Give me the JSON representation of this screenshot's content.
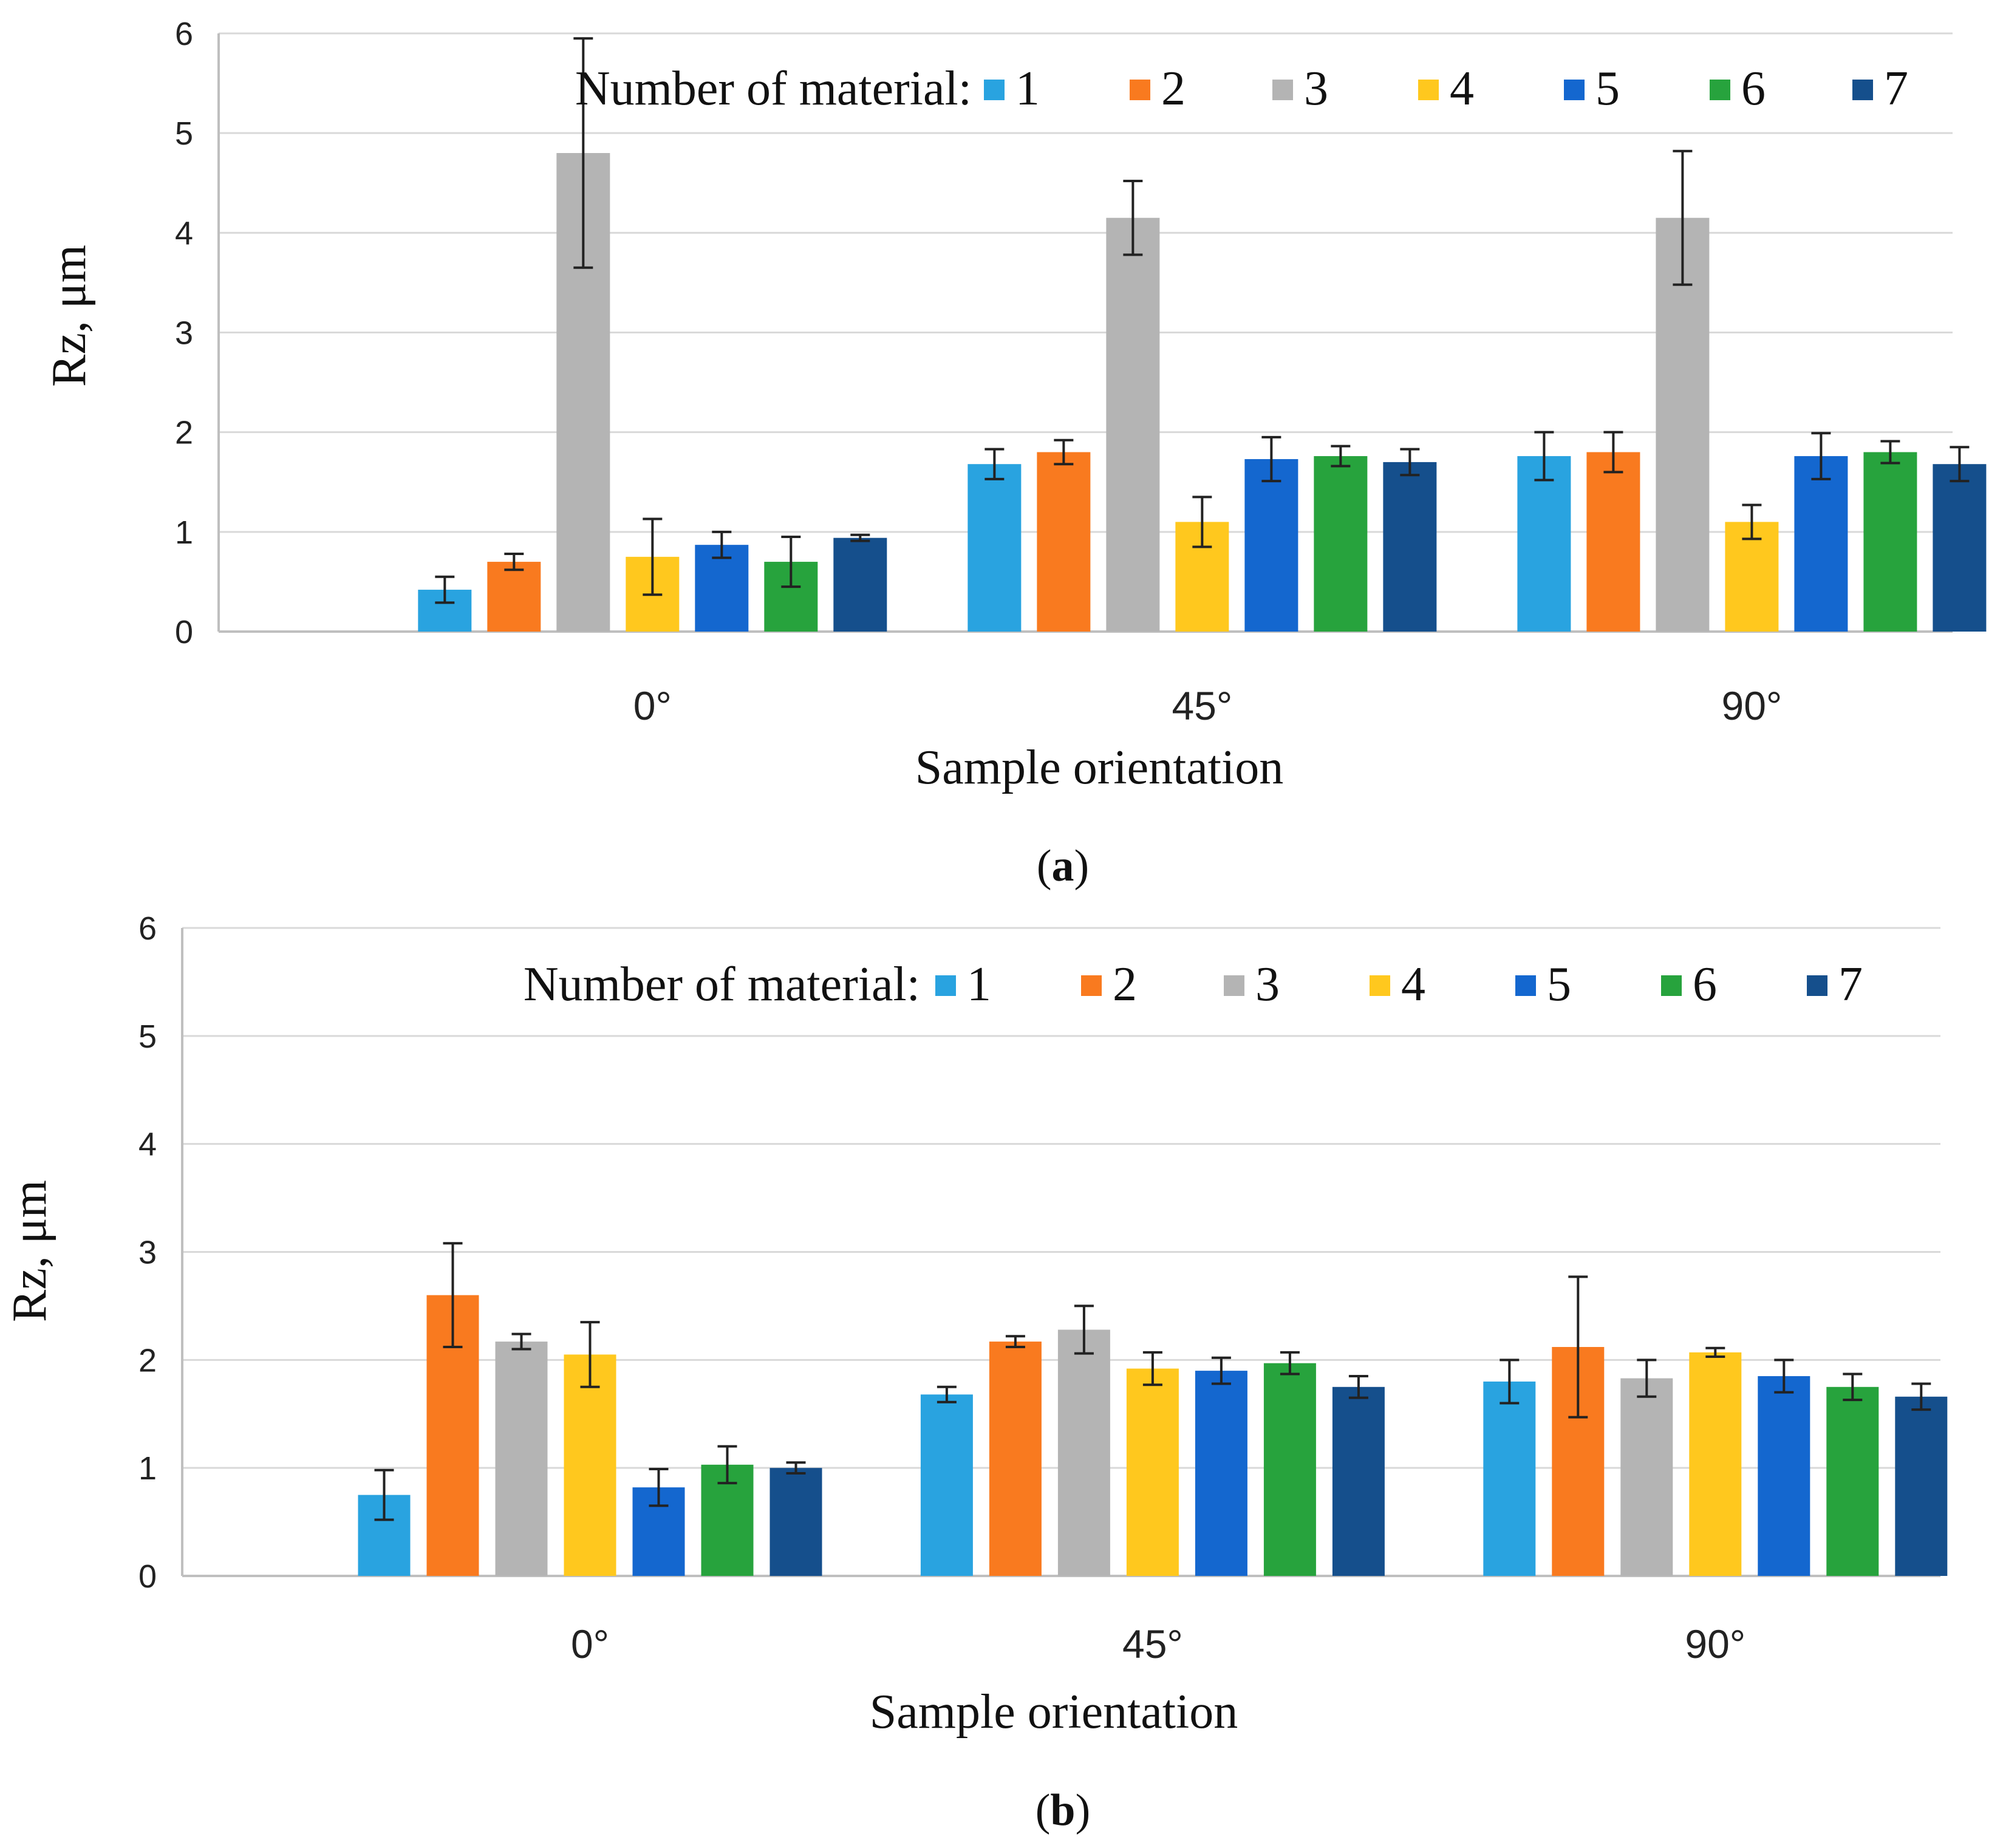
{
  "colors": {
    "series": [
      "#29A3E0",
      "#F97A1F",
      "#B4B4B4",
      "#FFC81E",
      "#1467CF",
      "#27A33D",
      "#154F8C"
    ],
    "grid": "#d9d9d9",
    "axis": "#bfbfbf",
    "error_bar": "#222222"
  },
  "chart_data": [
    {
      "panel": "a",
      "type": "bar",
      "caption_open": "(",
      "caption_letter": "a",
      "caption_close": ")",
      "xlabel": "Sample orientation",
      "ylabel": "Rz, μm",
      "ylim": [
        0,
        6
      ],
      "yticks": [
        "0",
        "1",
        "2",
        "3",
        "4",
        "5",
        "6"
      ],
      "grid": true,
      "legend_title": "Number of material:",
      "legend_placement": "top",
      "categories": [
        "0°",
        "45°",
        "90°"
      ],
      "series": [
        {
          "name": "1",
          "values": [
            0.42,
            1.68,
            1.76
          ],
          "errors": [
            0.13,
            0.15,
            0.24
          ]
        },
        {
          "name": "2",
          "values": [
            0.7,
            1.8,
            1.8
          ],
          "errors": [
            0.08,
            0.12,
            0.2
          ]
        },
        {
          "name": "3",
          "values": [
            4.8,
            4.15,
            4.15
          ],
          "errors": [
            1.15,
            0.37,
            0.67
          ]
        },
        {
          "name": "4",
          "values": [
            0.75,
            1.1,
            1.1
          ],
          "errors": [
            0.38,
            0.25,
            0.17
          ]
        },
        {
          "name": "5",
          "values": [
            0.87,
            1.73,
            1.76
          ],
          "errors": [
            0.13,
            0.22,
            0.23
          ]
        },
        {
          "name": "6",
          "values": [
            0.7,
            1.76,
            1.8
          ],
          "errors": [
            0.25,
            0.1,
            0.11
          ]
        },
        {
          "name": "7",
          "values": [
            0.94,
            1.7,
            1.68
          ],
          "errors": [
            0.03,
            0.13,
            0.17
          ]
        }
      ]
    },
    {
      "panel": "b",
      "type": "bar",
      "caption_open": "(",
      "caption_letter": "b",
      "caption_close": ")",
      "xlabel": "Sample orientation",
      "ylabel": "Rz, μm",
      "ylim": [
        0,
        6
      ],
      "yticks": [
        "0",
        "1",
        "2",
        "3",
        "4",
        "5",
        "6"
      ],
      "grid": true,
      "legend_title": "Number of material:",
      "legend_placement": "top",
      "categories": [
        "0°",
        "45°",
        "90°"
      ],
      "series": [
        {
          "name": "1",
          "values": [
            0.75,
            1.68,
            1.8
          ],
          "errors": [
            0.23,
            0.07,
            0.2
          ]
        },
        {
          "name": "2",
          "values": [
            2.6,
            2.17,
            2.12
          ],
          "errors": [
            0.48,
            0.05,
            0.65
          ]
        },
        {
          "name": "3",
          "values": [
            2.17,
            2.28,
            1.83
          ],
          "errors": [
            0.07,
            0.22,
            0.17
          ]
        },
        {
          "name": "4",
          "values": [
            2.05,
            1.92,
            2.07
          ],
          "errors": [
            0.3,
            0.15,
            0.04
          ]
        },
        {
          "name": "5",
          "values": [
            0.82,
            1.9,
            1.85
          ],
          "errors": [
            0.17,
            0.12,
            0.15
          ]
        },
        {
          "name": "6",
          "values": [
            1.03,
            1.97,
            1.75
          ],
          "errors": [
            0.17,
            0.1,
            0.12
          ]
        },
        {
          "name": "7",
          "values": [
            1.0,
            1.75,
            1.66
          ],
          "errors": [
            0.05,
            0.1,
            0.12
          ]
        }
      ]
    }
  ]
}
